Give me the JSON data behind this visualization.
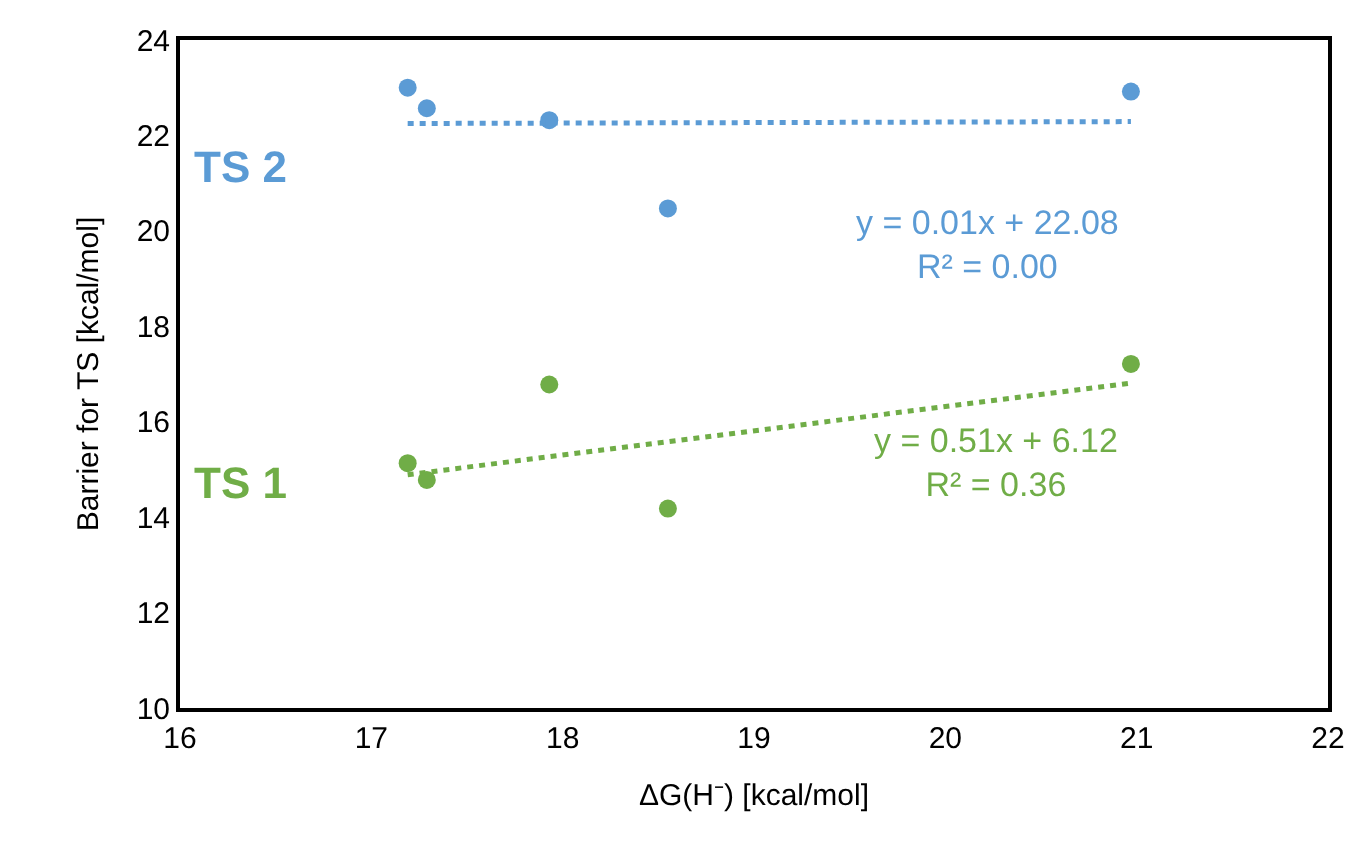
{
  "chart_data": {
    "type": "scatter",
    "xlabel": "ΔG(H⁻) [kcal/mol]",
    "ylabel": "Barrier for TS [kcal/mol]",
    "xlim": [
      16,
      22
    ],
    "xticks": [
      16,
      17,
      18,
      19,
      20,
      21,
      22
    ],
    "ylim": [
      10,
      24
    ],
    "yticks": [
      10,
      12,
      14,
      16,
      18,
      20,
      22,
      24
    ],
    "legend": false,
    "marker": "circle",
    "series": [
      {
        "name": "TS 2",
        "color": "#5b9bd5",
        "x": [
          17.19,
          17.29,
          17.93,
          18.55,
          20.97
        ],
        "values": [
          23.0,
          22.57,
          22.32,
          20.47,
          22.92
        ]
      },
      {
        "name": "TS 1",
        "color": "#70ad47",
        "x": [
          17.19,
          17.29,
          17.93,
          18.55,
          20.97
        ],
        "values": [
          15.13,
          14.78,
          16.78,
          14.18,
          17.21
        ]
      },
      {
        "type": "line",
        "color": "#5b9bd5",
        "line_style": "dotted",
        "marker": "none",
        "x": [
          17.19,
          20.97
        ],
        "values": [
          22.25,
          22.29
        ]
      },
      {
        "type": "line",
        "color": "#70ad47",
        "line_style": "dotted",
        "marker": "none",
        "x": [
          17.19,
          20.97
        ],
        "values": [
          14.89,
          16.81
        ]
      }
    ],
    "annotations": [
      "y = 0.01x + 22.08\nR² = 0.00",
      "y = 0.51x + 6.12\nR² = 0.36"
    ]
  }
}
